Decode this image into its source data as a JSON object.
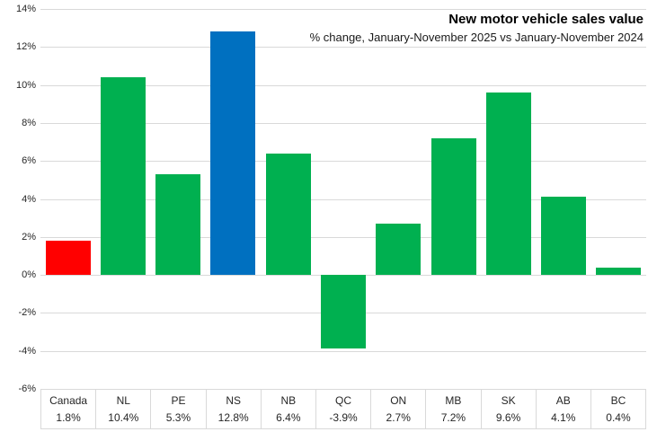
{
  "title": "New motor vehicle sales value",
  "subtitle": "% change, January-November 2025 vs January-November 2024",
  "chart_data": {
    "type": "bar",
    "title": "New motor vehicle sales value",
    "subtitle": "% change, January-November 2025 vs January-November 2024",
    "categories": [
      "Canada",
      "NL",
      "PE",
      "NS",
      "NB",
      "QC",
      "ON",
      "MB",
      "SK",
      "AB",
      "BC"
    ],
    "values": [
      1.8,
      10.4,
      5.3,
      12.8,
      6.4,
      -3.9,
      2.7,
      7.2,
      9.6,
      4.1,
      0.4
    ],
    "value_labels": [
      "1.8%",
      "10.4%",
      "5.3%",
      "12.8%",
      "6.4%",
      "-3.9%",
      "2.7%",
      "7.2%",
      "9.6%",
      "4.1%",
      "0.4%"
    ],
    "bar_colors": [
      "#ff0000",
      "#00b050",
      "#00b050",
      "#0070c0",
      "#00b050",
      "#00b050",
      "#00b050",
      "#00b050",
      "#00b050",
      "#00b050",
      "#00b050"
    ],
    "highlight_colors": {
      "canada": "#ff0000",
      "nova_scotia": "#0070c0",
      "default": "#00b050"
    },
    "xlabel": "",
    "ylabel": "",
    "ylim": [
      -6,
      14
    ],
    "ytick_step": 2,
    "ytick_labels": [
      "14%",
      "12%",
      "10%",
      "8%",
      "6%",
      "4%",
      "2%",
      "0%",
      "-2%",
      "-4%",
      "-6%"
    ],
    "grid": true,
    "gridline_color": "#d9d9d9",
    "legend": "none",
    "data_table_shown": true
  }
}
